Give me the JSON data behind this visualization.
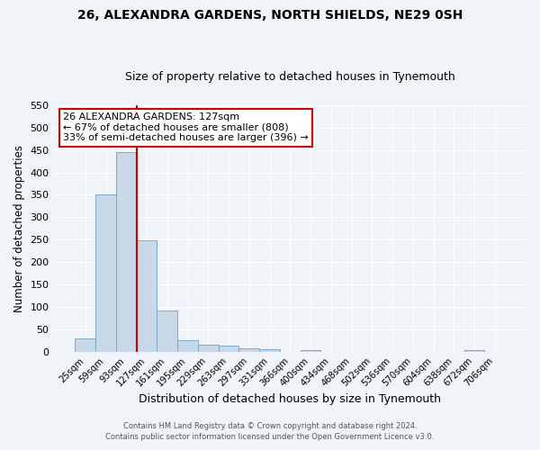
{
  "title": "26, ALEXANDRA GARDENS, NORTH SHIELDS, NE29 0SH",
  "subtitle": "Size of property relative to detached houses in Tynemouth",
  "xlabel": "Distribution of detached houses by size in Tynemouth",
  "ylabel": "Number of detached properties",
  "bar_labels": [
    "25sqm",
    "59sqm",
    "93sqm",
    "127sqm",
    "161sqm",
    "195sqm",
    "229sqm",
    "263sqm",
    "297sqm",
    "331sqm",
    "366sqm",
    "400sqm",
    "434sqm",
    "468sqm",
    "502sqm",
    "536sqm",
    "570sqm",
    "604sqm",
    "638sqm",
    "672sqm",
    "706sqm"
  ],
  "bar_values": [
    30,
    350,
    445,
    248,
    93,
    27,
    15,
    13,
    7,
    5,
    0,
    4,
    0,
    0,
    0,
    0,
    0,
    0,
    0,
    4,
    0
  ],
  "bar_color": "#c8d8e8",
  "bar_edge_color": "#7aaac8",
  "vline_x": 2.5,
  "vline_color": "#cc0000",
  "ylim": [
    0,
    550
  ],
  "yticks": [
    0,
    50,
    100,
    150,
    200,
    250,
    300,
    350,
    400,
    450,
    500,
    550
  ],
  "annotation_title": "26 ALEXANDRA GARDENS: 127sqm",
  "annotation_line1": "← 67% of detached houses are smaller (808)",
  "annotation_line2": "33% of semi-detached houses are larger (396) →",
  "annotation_box_color": "#ffffff",
  "annotation_border_color": "#cc0000",
  "footnote1": "Contains HM Land Registry data © Crown copyright and database right 2024.",
  "footnote2": "Contains public sector information licensed under the Open Government Licence v3.0.",
  "bg_color": "#f0f4f8",
  "grid_color": "#ffffff",
  "title_fontsize": 10,
  "subtitle_fontsize": 9
}
